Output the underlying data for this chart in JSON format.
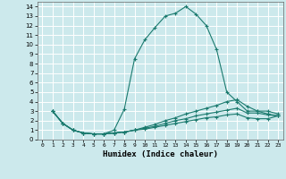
{
  "xlabel": "Humidex (Indice chaleur)",
  "background_color": "#cce9ec",
  "grid_color": "#ffffff",
  "line_color": "#1a7a6e",
  "xlim": [
    -0.5,
    23.5
  ],
  "ylim": [
    0,
    14.5
  ],
  "xticks": [
    0,
    1,
    2,
    3,
    4,
    5,
    6,
    7,
    8,
    9,
    10,
    11,
    12,
    13,
    14,
    15,
    16,
    17,
    18,
    19,
    20,
    21,
    22,
    23
  ],
  "yticks": [
    0,
    1,
    2,
    3,
    4,
    5,
    6,
    7,
    8,
    9,
    10,
    11,
    12,
    13,
    14
  ],
  "lines": [
    {
      "x": [
        1,
        2,
        3,
        4,
        5,
        6,
        7,
        8,
        9,
        10,
        11,
        12,
        13,
        14,
        15,
        16,
        17,
        18,
        19,
        20,
        21,
        22,
        23
      ],
      "y": [
        3,
        1.7,
        1.0,
        0.7,
        0.6,
        0.6,
        1.0,
        3.2,
        8.5,
        10.5,
        11.8,
        13.0,
        13.3,
        14.0,
        13.2,
        12.0,
        9.5,
        5.0,
        4.0,
        3.0,
        3.0,
        2.7,
        2.5
      ]
    },
    {
      "x": [
        1,
        2,
        3,
        4,
        5,
        6,
        7,
        8,
        9,
        10,
        11,
        12,
        13,
        14,
        15,
        16,
        17,
        18,
        19,
        20,
        21,
        22,
        23
      ],
      "y": [
        3,
        1.7,
        1.0,
        0.7,
        0.6,
        0.6,
        0.7,
        0.8,
        1.0,
        1.3,
        1.6,
        2.0,
        2.3,
        2.7,
        3.0,
        3.3,
        3.6,
        4.0,
        4.2,
        3.5,
        3.0,
        3.0,
        2.7
      ]
    },
    {
      "x": [
        1,
        2,
        3,
        4,
        5,
        6,
        7,
        8,
        9,
        10,
        11,
        12,
        13,
        14,
        15,
        16,
        17,
        18,
        19,
        20,
        21,
        22,
        23
      ],
      "y": [
        3,
        1.7,
        1.0,
        0.7,
        0.6,
        0.6,
        0.7,
        0.8,
        1.0,
        1.2,
        1.4,
        1.7,
        2.0,
        2.2,
        2.5,
        2.7,
        2.9,
        3.1,
        3.3,
        2.8,
        2.8,
        2.6,
        2.5
      ]
    },
    {
      "x": [
        1,
        2,
        3,
        4,
        5,
        6,
        7,
        8,
        9,
        10,
        11,
        12,
        13,
        14,
        15,
        16,
        17,
        18,
        19,
        20,
        21,
        22,
        23
      ],
      "y": [
        3,
        1.7,
        1.0,
        0.7,
        0.6,
        0.6,
        0.7,
        0.8,
        1.0,
        1.1,
        1.3,
        1.5,
        1.7,
        1.9,
        2.1,
        2.3,
        2.4,
        2.6,
        2.7,
        2.3,
        2.2,
        2.2,
        2.5
      ]
    }
  ]
}
